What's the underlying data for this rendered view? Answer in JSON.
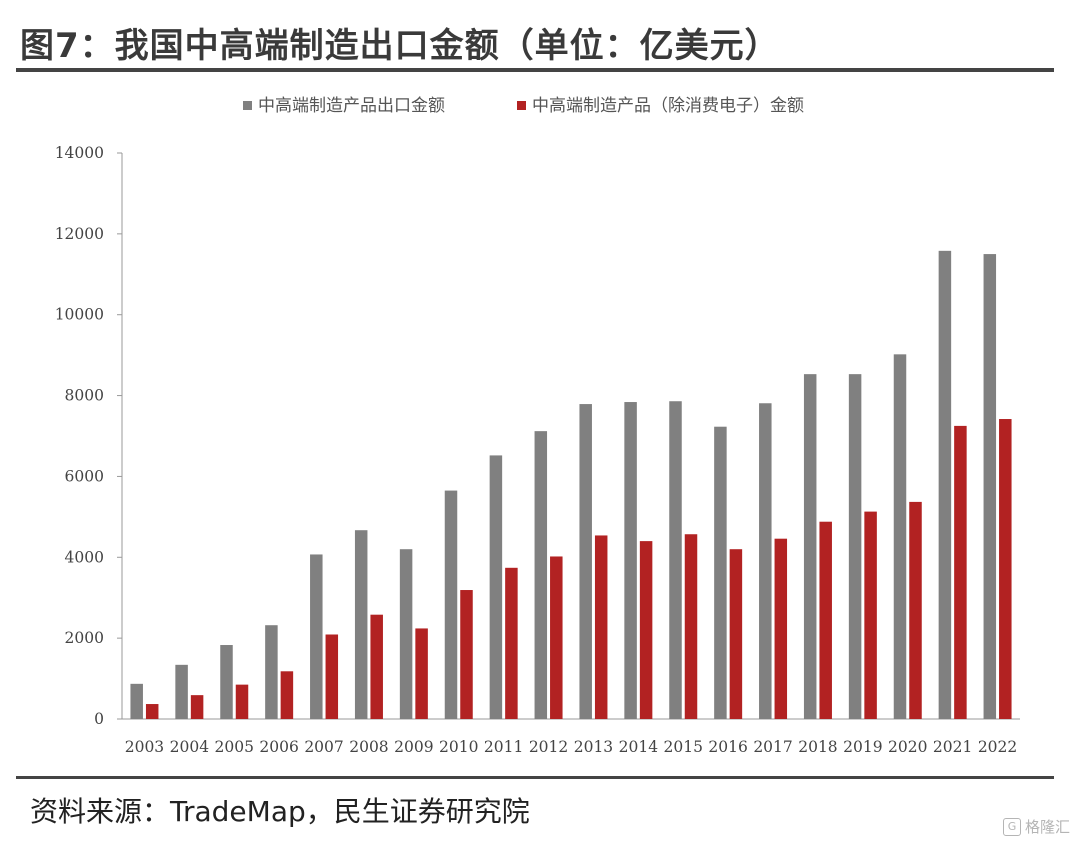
{
  "title": "图7：我国中高端制造出口金额（单位：亿美元）",
  "source": "资料来源：TradeMap，民生证券研究院",
  "watermark": "格隆汇",
  "colors": {
    "series1": "#808080",
    "series2": "#b22222",
    "axis": "#999999",
    "rule": "#444444"
  },
  "chart_data": {
    "type": "bar",
    "title": "",
    "xlabel": "",
    "ylabel": "",
    "ylim": [
      0,
      14000
    ],
    "yticks": [
      0,
      2000,
      4000,
      6000,
      8000,
      10000,
      12000,
      14000
    ],
    "grid": false,
    "legend": "top-center",
    "categories": [
      "2003",
      "2004",
      "2005",
      "2006",
      "2007",
      "2008",
      "2009",
      "2010",
      "2011",
      "2012",
      "2013",
      "2014",
      "2015",
      "2016",
      "2017",
      "2018",
      "2019",
      "2020",
      "2021",
      "2022"
    ],
    "series": [
      {
        "name": "中高端制造产品出口金额",
        "values": [
          870,
          1340,
          1830,
          2320,
          4070,
          4670,
          4200,
          5650,
          6520,
          7120,
          7790,
          7840,
          7860,
          7230,
          7810,
          8530,
          8530,
          9020,
          11580,
          11500
        ]
      },
      {
        "name": "中高端制造产品（除消费电子）金额",
        "values": [
          370,
          590,
          850,
          1180,
          2090,
          2580,
          2240,
          3190,
          3740,
          4020,
          4540,
          4400,
          4570,
          4200,
          4460,
          4880,
          5130,
          5370,
          7250,
          7420
        ]
      }
    ]
  }
}
